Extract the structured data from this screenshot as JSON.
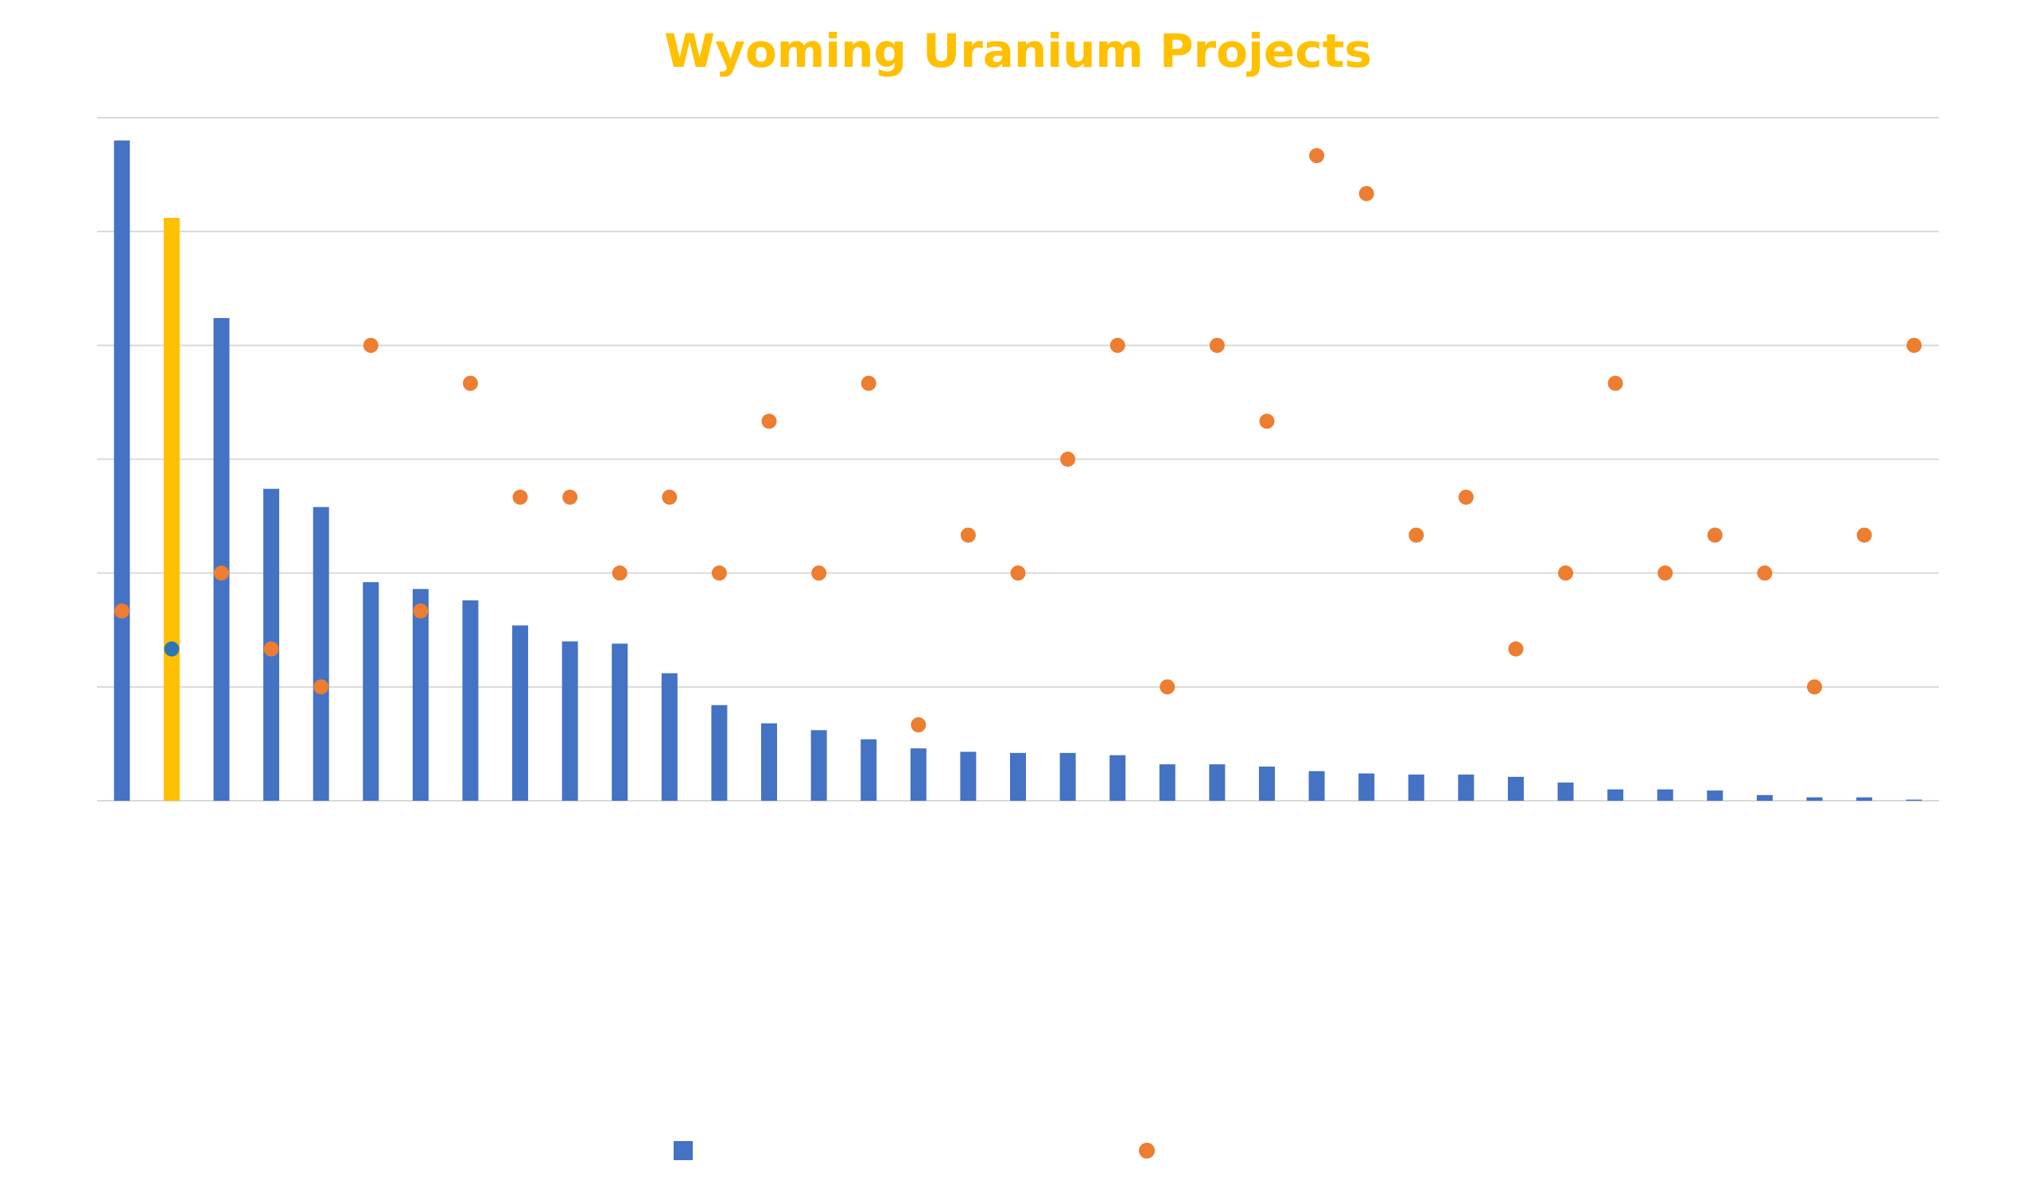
{
  "chart_data": {
    "type": "bar",
    "title": "Wyoming Uranium Projects",
    "colors": {
      "title": "#FFC000",
      "bar": "#4472C4",
      "highlight_bar": "#FFC000",
      "highlight_marker": "#2E75B6",
      "marker": "#ED7D31",
      "grid": "#D9D9D9"
    },
    "grid": true,
    "y_gridlines": 6,
    "legend": {
      "position": "bottom",
      "entries": [
        {
          "series": 0,
          "symbol": "square"
        },
        {
          "series": 1,
          "symbol": "circle"
        }
      ]
    },
    "highlight_index": 1,
    "series": [
      {
        "kind": "bar",
        "axis": "primary",
        "ylim": [
          0,
          300
        ],
        "values": [
          290,
          256,
          212,
          137,
          129,
          96,
          93,
          88,
          77,
          70,
          69,
          56,
          42,
          34,
          31,
          27,
          23,
          21.5,
          21,
          21,
          20,
          16,
          16,
          15,
          13,
          12,
          11.5,
          11.5,
          10.5,
          8,
          5,
          5,
          4.5,
          2.5,
          1.5,
          1.5,
          0.5
        ]
      },
      {
        "kind": "scatter",
        "axis": "secondary",
        "ylim": [
          0,
          18
        ],
        "values": [
          5,
          4,
          6,
          4,
          3,
          12,
          5,
          11,
          8,
          8,
          6,
          8,
          6,
          10,
          6,
          11,
          2,
          7,
          6,
          9,
          12,
          3,
          12,
          10,
          17,
          16,
          7,
          8,
          4,
          6,
          11,
          6,
          7,
          6,
          3,
          7,
          12
        ]
      }
    ]
  }
}
